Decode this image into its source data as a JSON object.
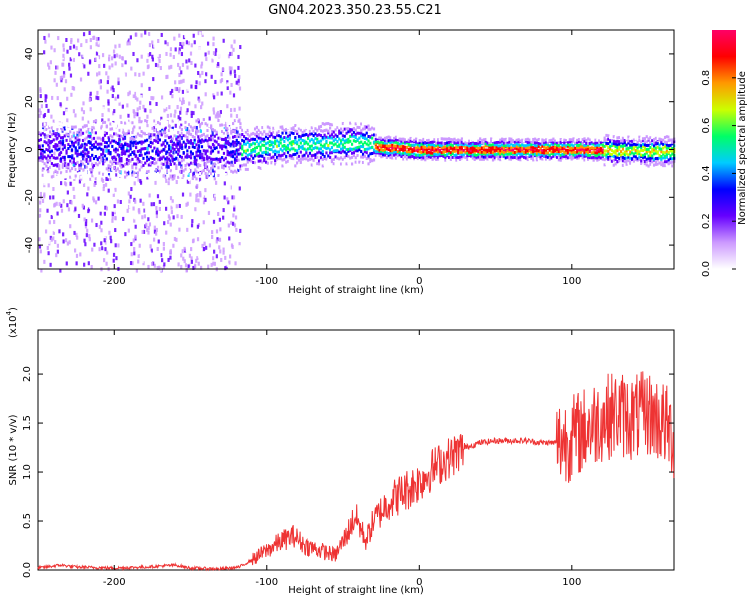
{
  "title": "GN04.2023.350.23.55.C21",
  "chart_data": [
    {
      "type": "heatmap",
      "title": "GN04.2023.350.23.55.C21",
      "xlabel": "Height of straight line (km)",
      "ylabel": "Frequency (Hz)",
      "xlim": [
        -250,
        167
      ],
      "ylim": [
        -50,
        50
      ],
      "xticks": [
        -200,
        -100,
        0,
        100
      ],
      "yticks": [
        -40,
        -20,
        0,
        20,
        40
      ],
      "colorbar": {
        "label": "Normalized spectral amplitude",
        "range": [
          0,
          1
        ],
        "ticks": [
          "0.0",
          "0.2",
          "0.4",
          "0.6",
          "0.8"
        ],
        "colormap": [
          "#ffffff",
          "#cc99ff",
          "#6600ff",
          "#0000ff",
          "#00ccff",
          "#00ff66",
          "#ccff00",
          "#ff9900",
          "#ff0000",
          "#ff0066"
        ]
      },
      "features": {
        "noise_region_x": [
          -250,
          -118
        ],
        "ridge_center_freq_hz": [
          {
            "x": -118,
            "y": 0
          },
          {
            "x": -90,
            "y": 2
          },
          {
            "x": -60,
            "y": 2
          },
          {
            "x": -40,
            "y": 3
          },
          {
            "x": -25,
            "y": 1
          },
          {
            "x": 0,
            "y": 0
          },
          {
            "x": 60,
            "y": 0
          },
          {
            "x": 110,
            "y": 0
          },
          {
            "x": 167,
            "y": -1
          }
        ]
      }
    },
    {
      "type": "line",
      "xlabel": "Height of straight line (km)",
      "ylabel": "SNR (10 * v/v)",
      "scale_note": "(x10",
      "scale_exp": "4",
      "xlim": [
        -250,
        167
      ],
      "ylim": [
        0,
        2.45
      ],
      "xticks": [
        -200,
        -100,
        0,
        100
      ],
      "yticks": [
        "0.0",
        "0.5",
        "1.0",
        "1.5",
        "2.0"
      ],
      "color": "#ee3333",
      "series": [
        {
          "x": [
            -250,
            -235,
            -225,
            -200,
            -180,
            -160,
            -150,
            -130,
            -118,
            -110,
            -100,
            -90,
            -82,
            -75,
            -65,
            -55,
            -48,
            -42,
            -35,
            -30,
            -25,
            -20,
            -15,
            -10,
            0,
            10,
            20,
            30,
            40,
            50,
            60,
            70,
            80,
            90,
            100,
            110,
            120,
            130,
            140,
            150,
            160,
            167
          ],
          "y": [
            0.02,
            0.05,
            0.03,
            0.02,
            0.03,
            0.05,
            0.02,
            0.01,
            0.03,
            0.1,
            0.2,
            0.3,
            0.35,
            0.25,
            0.2,
            0.15,
            0.35,
            0.55,
            0.3,
            0.5,
            0.6,
            0.7,
            0.75,
            0.8,
            0.9,
            1.05,
            1.15,
            1.25,
            1.3,
            1.32,
            1.32,
            1.32,
            1.3,
            1.3,
            1.35,
            1.45,
            1.55,
            1.6,
            1.55,
            1.6,
            1.5,
            1.35
          ]
        }
      ]
    }
  ]
}
